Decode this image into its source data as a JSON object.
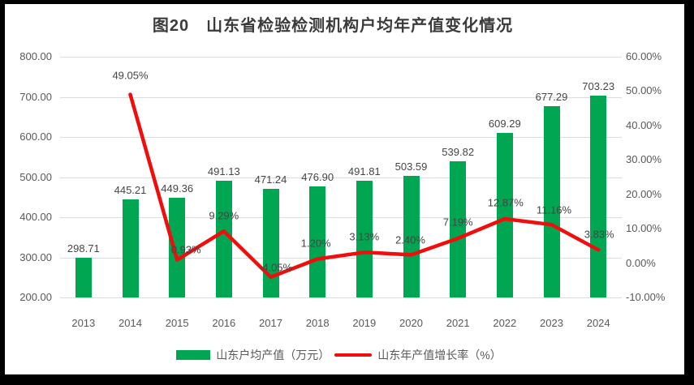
{
  "title": "图20　山东省检验检测机构户均年产值变化情况",
  "colors": {
    "bar": "#00A651",
    "line": "#F20D0D",
    "grid": "#DCDCDC",
    "frame": "#000000",
    "panel": "#FFFFFF",
    "title_text": "#3B3B3B",
    "axis_text": "#595959",
    "label_text": "#454545"
  },
  "legend": {
    "items": [
      {
        "label": "山东户均产值（万元）",
        "type": "bar"
      },
      {
        "label": "山东年产值增长率（%）",
        "type": "line"
      }
    ]
  },
  "chart_data": {
    "type": "combo",
    "title": "图20　山东省检验检测机构户均年产值变化情况",
    "categories": [
      "2013",
      "2014",
      "2015",
      "2016",
      "2017",
      "2018",
      "2019",
      "2020",
      "2021",
      "2022",
      "2023",
      "2024"
    ],
    "series": [
      {
        "name": "山东户均产值（万元）",
        "type": "bar",
        "axis": "left",
        "values": [
          298.71,
          445.21,
          449.36,
          491.13,
          471.24,
          476.9,
          491.81,
          503.59,
          539.82,
          609.29,
          677.29,
          703.23
        ]
      },
      {
        "name": "山东年产值增长率（%）",
        "type": "line",
        "axis": "right",
        "starts_at_category": "2014",
        "values": [
          49.05,
          0.93,
          9.29,
          -4.05,
          1.2,
          3.13,
          2.4,
          7.19,
          12.87,
          11.16,
          3.83
        ]
      }
    ],
    "bar_labels": [
      "298.71",
      "445.21",
      "449.36",
      "491.13",
      "471.24",
      "476.90",
      "491.81",
      "503.59",
      "539.82",
      "609.29",
      "677.29",
      "703.23"
    ],
    "line_labels": [
      "49.05%",
      "0.93%",
      "9.29%",
      "-4.05%",
      "1.20%",
      "3.13%",
      "2.40%",
      "7.19%",
      "12.87%",
      "11.16%",
      "3.83%"
    ],
    "left_axis": {
      "min": 200,
      "max": 800,
      "step": 100,
      "ticks": [
        "800.00",
        "700.00",
        "600.00",
        "500.00",
        "400.00",
        "300.00",
        "200.00"
      ]
    },
    "right_axis": {
      "min": -10,
      "max": 60,
      "step": 10,
      "ticks": [
        "60.00%",
        "50.00%",
        "40.00%",
        "30.00%",
        "20.00%",
        "10.00%",
        "0.00%",
        "-10.00%"
      ]
    },
    "grid": "horizontal-on",
    "legend_position": "bottom"
  }
}
